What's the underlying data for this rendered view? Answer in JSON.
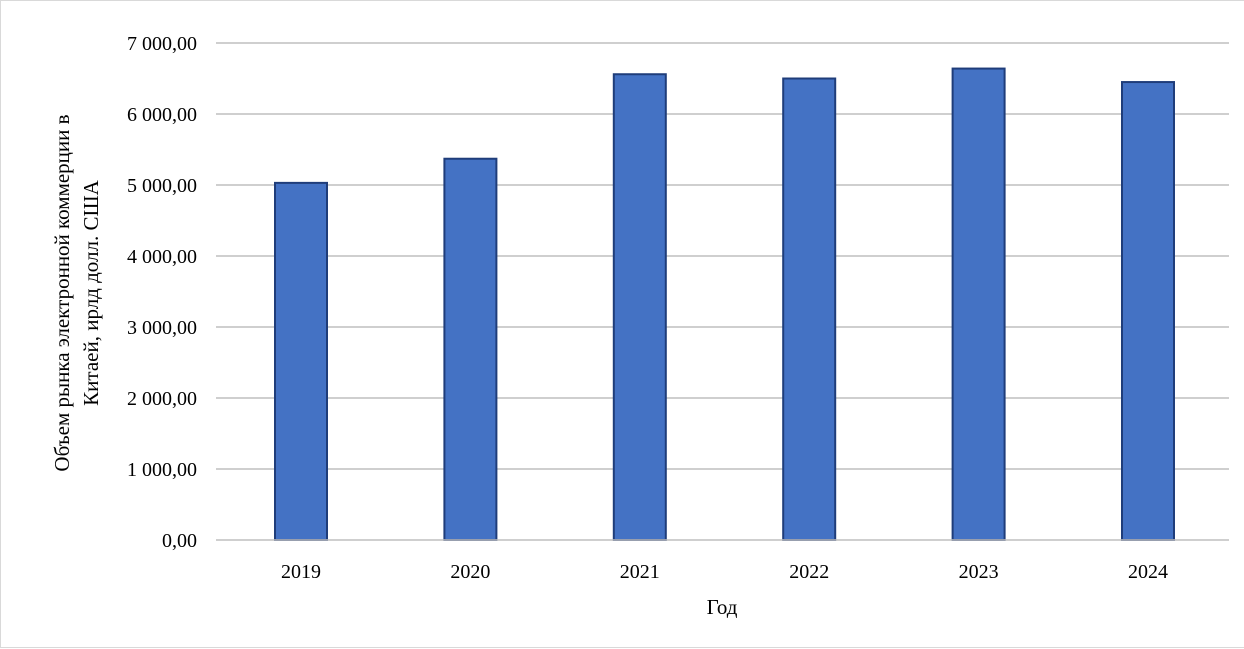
{
  "chart_data": {
    "type": "bar",
    "categories": [
      "2019",
      "2020",
      "2021",
      "2022",
      "2023",
      "2024"
    ],
    "values": [
      5030,
      5370,
      6560,
      6500,
      6640,
      6450
    ],
    "ylim": [
      0,
      7000
    ],
    "yticks": [
      "0,00",
      "1 000,00",
      "2 000,00",
      "3 000,00",
      "4 000,00",
      "5 000,00",
      "6 000,00",
      "7 000,00"
    ],
    "ytick_values": [
      0,
      1000,
      2000,
      3000,
      4000,
      5000,
      6000,
      7000
    ],
    "xlabel": "Год",
    "ylabel_line1": "Объем рынка электронной коммерции в",
    "ylabel_line2": "Китаей, ирлд долл. США",
    "grid": true,
    "legend": "none",
    "colors": {
      "bar_fill": "#4472c4",
      "bar_stroke": "#1f3d7a",
      "grid": "#bfbfbf"
    }
  }
}
